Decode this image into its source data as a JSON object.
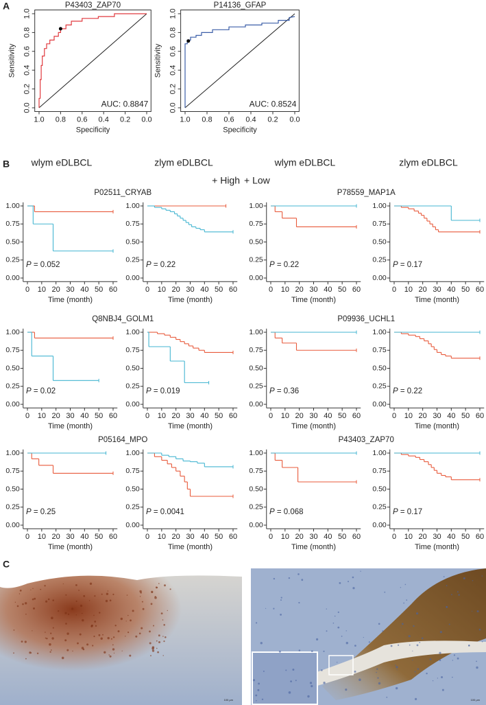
{
  "panel_labels": [
    "A",
    "B",
    "C"
  ],
  "column_headers": [
    "wlym eDLBCL",
    "zlym eDLBCL",
    "wlym eDLBCL",
    "zlym eDLBCL"
  ],
  "legend": [
    {
      "name": "+ High",
      "color": "#e8593a"
    },
    {
      "name": "+ Low",
      "color": "#43b5d1"
    }
  ],
  "images": {
    "scale_labels": [
      "100 μm",
      "100 μm"
    ]
  },
  "chart_data": [
    {
      "type": "roc",
      "title": "P43403_ZAP70",
      "xlabel": "Specificity",
      "ylabel": "Sensitivity",
      "annotation": "AUC: 0.8847",
      "xlim": [
        1.04,
        -0.04
      ],
      "ylim": [
        -0.04,
        1.04
      ],
      "xticks": [
        {
          "value": 1,
          "label": "1.0"
        },
        0.8,
        0.6,
        0.4,
        0.2,
        {
          "value": 0,
          "label": "0.0"
        }
      ],
      "yticks": [
        {
          "value": 0,
          "label": "0.0"
        },
        0.2,
        0.4,
        0.6,
        0.8,
        {
          "value": 1,
          "label": "1.0"
        }
      ],
      "series": [
        {
          "color": "#e0393e",
          "x": [
            1.0,
            1.0,
            0.99,
            0.99,
            0.98,
            0.98,
            0.97,
            0.97,
            0.95,
            0.95,
            0.93,
            0.93,
            0.9,
            0.9,
            0.86,
            0.86,
            0.82,
            0.82,
            0.8,
            0.8,
            0.75,
            0.75,
            0.7,
            0.7,
            0.6,
            0.6,
            0.45,
            0.45,
            0.3,
            0.3,
            0.0
          ],
          "values": [
            0,
            0.1,
            0.1,
            0.3,
            0.3,
            0.45,
            0.45,
            0.55,
            0.55,
            0.63,
            0.63,
            0.68,
            0.68,
            0.72,
            0.72,
            0.76,
            0.76,
            0.8,
            0.8,
            0.84,
            0.84,
            0.88,
            0.88,
            0.92,
            0.92,
            0.95,
            0.95,
            0.97,
            0.97,
            1.0,
            1.0
          ]
        }
      ],
      "marker": {
        "x": 0.8,
        "y": 0.84,
        "color": "#000000"
      }
    },
    {
      "type": "roc",
      "title": "P14136_GFAP",
      "xlabel": "Specificity",
      "ylabel": "Sensitivity",
      "annotation": "AUC: 0.8524",
      "xlim": [
        1.04,
        -0.04
      ],
      "ylim": [
        -0.04,
        1.04
      ],
      "xticks": [
        {
          "value": 1,
          "label": "1.0"
        },
        0.8,
        0.6,
        0.4,
        0.2,
        {
          "value": 0,
          "label": "0.0"
        }
      ],
      "yticks": [
        {
          "value": 0,
          "label": "0.0"
        },
        0.2,
        0.4,
        0.6,
        0.8,
        {
          "value": 1,
          "label": "1.0"
        }
      ],
      "series": [
        {
          "color": "#3b5ea8",
          "x": [
            1.0,
            1.0,
            0.98,
            0.98,
            0.95,
            0.95,
            0.9,
            0.9,
            0.85,
            0.85,
            0.75,
            0.75,
            0.6,
            0.6,
            0.45,
            0.45,
            0.3,
            0.3,
            0.15,
            0.15,
            0.05,
            0.05,
            0.0
          ],
          "values": [
            0,
            0.68,
            0.68,
            0.72,
            0.72,
            0.75,
            0.75,
            0.77,
            0.77,
            0.8,
            0.8,
            0.83,
            0.83,
            0.86,
            0.86,
            0.88,
            0.88,
            0.9,
            0.9,
            0.93,
            0.93,
            0.96,
            0.97
          ]
        }
      ],
      "marker": {
        "x": 0.97,
        "y": 0.71,
        "color": "#000000"
      }
    },
    {
      "type": "step",
      "title": "P02511_CRYAB",
      "xlabel": "Time (month)",
      "annotation": "P = 0.052",
      "xlim": [
        -3,
        63
      ],
      "ylim": [
        -0.05,
        1.05
      ],
      "xticks": [
        0,
        10,
        20,
        30,
        40,
        50,
        60
      ],
      "yticks": [
        {
          "value": 0,
          "label": "0.00"
        },
        0.25,
        {
          "value": 0.5,
          "label": "0.50"
        },
        0.75,
        {
          "value": 1,
          "label": "1.00"
        }
      ],
      "series": [
        {
          "color": "#e8593a",
          "x": [
            0,
            5,
            60
          ],
          "values": [
            1,
            0.92,
            0.92
          ]
        },
        {
          "color": "#43b5d1",
          "x": [
            0,
            4,
            18,
            60
          ],
          "values": [
            1,
            0.75,
            0.375,
            0.375
          ]
        }
      ]
    },
    {
      "type": "step",
      "xlabel": "Time (month)",
      "annotation": "P = 0.22",
      "xlim": [
        -3,
        63
      ],
      "ylim": [
        -0.05,
        1.05
      ],
      "xticks": [
        0,
        10,
        20,
        30,
        40,
        50,
        60
      ],
      "yticks": [
        {
          "value": 0,
          "label": "0.00"
        },
        0.25,
        {
          "value": 0.5,
          "label": "0.50"
        },
        0.75,
        {
          "value": 1,
          "label": "1.00"
        }
      ],
      "series": [
        {
          "color": "#e8593a",
          "x": [
            0,
            55
          ],
          "values": [
            1,
            1
          ]
        },
        {
          "color": "#43b5d1",
          "x": [
            0,
            5,
            10,
            13,
            16,
            19,
            21,
            23,
            25,
            27,
            29,
            31,
            34,
            37,
            40,
            60
          ],
          "values": [
            1,
            0.98,
            0.96,
            0.94,
            0.92,
            0.89,
            0.86,
            0.83,
            0.8,
            0.77,
            0.74,
            0.71,
            0.69,
            0.67,
            0.64,
            0.64
          ]
        }
      ]
    },
    {
      "type": "step",
      "title": "P78559_MAP1A",
      "xlabel": "Time (month)",
      "annotation": "P = 0.22",
      "xlim": [
        -3,
        63
      ],
      "ylim": [
        -0.05,
        1.05
      ],
      "xticks": [
        0,
        10,
        20,
        30,
        40,
        50,
        60
      ],
      "yticks": [
        {
          "value": 0,
          "label": "0.00"
        },
        0.25,
        {
          "value": 0.5,
          "label": "0.50"
        },
        0.75,
        {
          "value": 1,
          "label": "1.00"
        }
      ],
      "series": [
        {
          "color": "#e8593a",
          "x": [
            0,
            3,
            8,
            18,
            60
          ],
          "values": [
            1,
            0.92,
            0.83,
            0.71,
            0.71
          ]
        },
        {
          "color": "#43b5d1",
          "x": [
            0,
            60
          ],
          "values": [
            1,
            1
          ]
        }
      ]
    },
    {
      "type": "step",
      "xlabel": "Time (month)",
      "annotation": "P = 0.17",
      "xlim": [
        -3,
        63
      ],
      "ylim": [
        -0.05,
        1.05
      ],
      "xticks": [
        0,
        10,
        20,
        30,
        40,
        50,
        60
      ],
      "yticks": [
        {
          "value": 0,
          "label": "0.00"
        },
        0.25,
        {
          "value": 0.5,
          "label": "0.50"
        },
        0.75,
        {
          "value": 1,
          "label": "1.00"
        }
      ],
      "series": [
        {
          "color": "#e8593a",
          "x": [
            0,
            5,
            10,
            14,
            17,
            19,
            21,
            23,
            25,
            27,
            29,
            31,
            60
          ],
          "values": [
            1,
            0.98,
            0.96,
            0.93,
            0.9,
            0.87,
            0.83,
            0.79,
            0.75,
            0.71,
            0.67,
            0.64,
            0.64
          ]
        },
        {
          "color": "#43b5d1",
          "x": [
            0,
            40,
            60
          ],
          "values": [
            1,
            0.8,
            0.8
          ]
        }
      ]
    },
    {
      "type": "step",
      "title": "Q8NBJ4_GOLM1",
      "xlabel": "Time (month)",
      "annotation": "P = 0.02",
      "xlim": [
        -3,
        63
      ],
      "ylim": [
        -0.05,
        1.05
      ],
      "xticks": [
        0,
        10,
        20,
        30,
        40,
        50,
        60
      ],
      "yticks": [
        {
          "value": 0,
          "label": "0.00"
        },
        0.25,
        {
          "value": 0.5,
          "label": "0.50"
        },
        0.75,
        {
          "value": 1,
          "label": "1.00"
        }
      ],
      "series": [
        {
          "color": "#e8593a",
          "x": [
            0,
            5,
            60
          ],
          "values": [
            1,
            0.92,
            0.92
          ]
        },
        {
          "color": "#43b5d1",
          "x": [
            0,
            3,
            18,
            50
          ],
          "values": [
            1,
            0.67,
            0.33,
            0.33
          ]
        }
      ]
    },
    {
      "type": "step",
      "xlabel": "Time (month)",
      "annotation": "P = 0.019",
      "xlim": [
        -3,
        63
      ],
      "ylim": [
        -0.05,
        1.05
      ],
      "xticks": [
        0,
        10,
        20,
        30,
        40,
        50,
        60
      ],
      "yticks": [
        {
          "value": 0,
          "label": "0.00"
        },
        0.25,
        {
          "value": 0.5,
          "label": "0.50"
        },
        0.75,
        {
          "value": 1,
          "label": "1.00"
        }
      ],
      "series": [
        {
          "color": "#e8593a",
          "x": [
            0,
            7,
            12,
            16,
            20,
            23,
            26,
            29,
            32,
            36,
            40,
            60
          ],
          "values": [
            1,
            0.98,
            0.96,
            0.93,
            0.9,
            0.87,
            0.84,
            0.81,
            0.78,
            0.75,
            0.72,
            0.72
          ]
        },
        {
          "color": "#43b5d1",
          "x": [
            0,
            1,
            16,
            26,
            43
          ],
          "values": [
            1,
            0.8,
            0.6,
            0.3,
            0.3
          ]
        }
      ]
    },
    {
      "type": "step",
      "title": "P09936_UCHL1",
      "xlabel": "Time (month)",
      "annotation": "P = 0.36",
      "xlim": [
        -3,
        63
      ],
      "ylim": [
        -0.05,
        1.05
      ],
      "xticks": [
        0,
        10,
        20,
        30,
        40,
        50,
        60
      ],
      "yticks": [
        {
          "value": 0,
          "label": "0.00"
        },
        0.25,
        {
          "value": 0.5,
          "label": "0.50"
        },
        0.75,
        {
          "value": 1,
          "label": "1.00"
        }
      ],
      "series": [
        {
          "color": "#e8593a",
          "x": [
            0,
            3,
            8,
            18,
            60
          ],
          "values": [
            1,
            0.92,
            0.85,
            0.75,
            0.75
          ]
        },
        {
          "color": "#43b5d1",
          "x": [
            0,
            60
          ],
          "values": [
            1,
            1
          ]
        }
      ]
    },
    {
      "type": "step",
      "xlabel": "Time (month)",
      "annotation": "P = 0.22",
      "xlim": [
        -3,
        63
      ],
      "ylim": [
        -0.05,
        1.05
      ],
      "xticks": [
        0,
        10,
        20,
        30,
        40,
        50,
        60
      ],
      "yticks": [
        {
          "value": 0,
          "label": "0.00"
        },
        0.25,
        {
          "value": 0.5,
          "label": "0.50"
        },
        0.75,
        {
          "value": 1,
          "label": "1.00"
        }
      ],
      "series": [
        {
          "color": "#e8593a",
          "x": [
            0,
            5,
            10,
            15,
            18,
            21,
            24,
            26,
            28,
            30,
            33,
            36,
            40,
            60
          ],
          "values": [
            1,
            0.98,
            0.96,
            0.94,
            0.91,
            0.88,
            0.84,
            0.8,
            0.76,
            0.72,
            0.69,
            0.67,
            0.64,
            0.64
          ]
        },
        {
          "color": "#43b5d1",
          "x": [
            0,
            60
          ],
          "values": [
            1,
            1
          ]
        }
      ]
    },
    {
      "type": "step",
      "title": "P05164_MPO",
      "xlabel": "Time (month)",
      "annotation": "P = 0.25",
      "xlim": [
        -3,
        63
      ],
      "ylim": [
        -0.05,
        1.05
      ],
      "xticks": [
        0,
        10,
        20,
        30,
        40,
        50,
        60
      ],
      "yticks": [
        {
          "value": 0,
          "label": "0.00"
        },
        0.25,
        {
          "value": 0.5,
          "label": "0.50"
        },
        0.75,
        {
          "value": 1,
          "label": "1.00"
        }
      ],
      "series": [
        {
          "color": "#e8593a",
          "x": [
            0,
            3,
            8,
            18,
            60
          ],
          "values": [
            1,
            0.92,
            0.83,
            0.72,
            0.72
          ]
        },
        {
          "color": "#43b5d1",
          "x": [
            0,
            55
          ],
          "values": [
            1,
            1
          ]
        }
      ]
    },
    {
      "type": "step",
      "xlabel": "Time (month)",
      "annotation": "P = 0.0041",
      "xlim": [
        -3,
        63
      ],
      "ylim": [
        -0.05,
        1.05
      ],
      "xticks": [
        0,
        10,
        20,
        30,
        40,
        50,
        60
      ],
      "yticks": [
        {
          "value": 0,
          "label": "0.00"
        },
        0.25,
        {
          "value": 0.5,
          "label": "0.50"
        },
        0.75,
        {
          "value": 1,
          "label": "1.00"
        }
      ],
      "series": [
        {
          "color": "#e8593a",
          "x": [
            0,
            5,
            10,
            14,
            17,
            20,
            23,
            26,
            28,
            30,
            60
          ],
          "values": [
            1,
            0.95,
            0.9,
            0.85,
            0.8,
            0.75,
            0.68,
            0.6,
            0.5,
            0.4,
            0.4
          ]
        },
        {
          "color": "#43b5d1",
          "x": [
            0,
            10,
            15,
            20,
            25,
            30,
            35,
            40,
            60
          ],
          "values": [
            1,
            0.97,
            0.95,
            0.92,
            0.89,
            0.88,
            0.86,
            0.81,
            0.81
          ]
        }
      ]
    },
    {
      "type": "step",
      "title": "P43403_ZAP70",
      "xlabel": "Time (month)",
      "annotation": "P = 0.068",
      "xlim": [
        -3,
        63
      ],
      "ylim": [
        -0.05,
        1.05
      ],
      "xticks": [
        0,
        10,
        20,
        30,
        40,
        50,
        60
      ],
      "yticks": [
        {
          "value": 0,
          "label": "0.00"
        },
        0.25,
        {
          "value": 0.5,
          "label": "0.50"
        },
        0.75,
        {
          "value": 1,
          "label": "1.00"
        }
      ],
      "series": [
        {
          "color": "#e8593a",
          "x": [
            0,
            3,
            8,
            19,
            60
          ],
          "values": [
            1,
            0.9,
            0.8,
            0.6,
            0.6
          ]
        },
        {
          "color": "#43b5d1",
          "x": [
            0,
            60
          ],
          "values": [
            1,
            1
          ]
        }
      ]
    },
    {
      "type": "step",
      "xlabel": "Time (month)",
      "annotation": "P = 0.17",
      "xlim": [
        -3,
        63
      ],
      "ylim": [
        -0.05,
        1.05
      ],
      "xticks": [
        0,
        10,
        20,
        30,
        40,
        50,
        60
      ],
      "yticks": [
        {
          "value": 0,
          "label": "0.00"
        },
        0.25,
        {
          "value": 0.5,
          "label": "0.50"
        },
        0.75,
        {
          "value": 1,
          "label": "1.00"
        }
      ],
      "series": [
        {
          "color": "#e8593a",
          "x": [
            0,
            5,
            10,
            15,
            18,
            21,
            24,
            26,
            28,
            30,
            33,
            36,
            40,
            60
          ],
          "values": [
            1,
            0.98,
            0.96,
            0.94,
            0.91,
            0.88,
            0.84,
            0.8,
            0.76,
            0.72,
            0.69,
            0.67,
            0.63,
            0.63
          ]
        },
        {
          "color": "#43b5d1",
          "x": [
            0,
            60
          ],
          "values": [
            1,
            1
          ]
        }
      ]
    }
  ]
}
